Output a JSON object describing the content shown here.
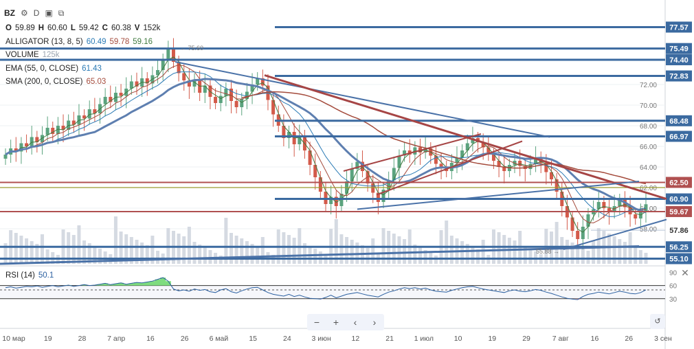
{
  "header": {
    "symbol": "BZ",
    "interval": "D",
    "settings_icon": "gear-icon",
    "compare_icon": "compare-icon",
    "fullscreen_icon": "screens-icon"
  },
  "ohlcv": {
    "o_label": "O",
    "o_val": "59.89",
    "h_label": "H",
    "h_val": "60.60",
    "l_label": "L",
    "l_val": "59.42",
    "c_label": "C",
    "c_val": "60.38",
    "v_label": "V",
    "v_val": "152k"
  },
  "indicators": [
    {
      "name": "ALLIGATOR (13, 8, 5)",
      "values": [
        "60.49",
        "59.78",
        "59.16"
      ],
      "colors": [
        "#2a7ab5",
        "#a44b3c",
        "#3f7a3f"
      ]
    },
    {
      "name": "VOLUME",
      "values": [
        "125k"
      ],
      "colors": [
        "#9aa4b0"
      ]
    },
    {
      "name": "EMA (55, 0, CLOSE)",
      "values": [
        "61.43"
      ],
      "colors": [
        "#2a7ab5"
      ]
    },
    {
      "name": "SMA (200, 0, CLOSE)",
      "values": [
        "65.03"
      ],
      "colors": [
        "#a44b3c"
      ]
    }
  ],
  "rsi": {
    "name": "RSI (14)",
    "value": "50.1"
  },
  "nav": {
    "zoom_out": "−",
    "zoom_in": "+",
    "left": "‹",
    "right": "›",
    "reset": "↺"
  },
  "colors": {
    "up": "#5ba37e",
    "down": "#d35a4a",
    "blue_level": "#3b6aa0",
    "red_level": "#b05050",
    "olive_level": "#9b9b2f",
    "trend_blue": "#4a72a8",
    "trend_red": "#a64545"
  },
  "chart_data": {
    "type": "line",
    "x_ticks": [
      "10 мар",
      "19",
      "28",
      "7 апр",
      "16",
      "26",
      "6 май",
      "15",
      "24",
      "3 июн",
      "12",
      "21",
      "1 июл",
      "10",
      "19",
      "29",
      "7 авг",
      "16",
      "26",
      "3 сен"
    ],
    "y_ticks": [
      58.0,
      60.0,
      62.0,
      64.0,
      66.0,
      68.0,
      70.0,
      72.0
    ],
    "ylim": [
      54.6,
      78.2
    ],
    "price_levels": [
      {
        "value": 77.57,
        "label": "77.57",
        "kind": "blue"
      },
      {
        "value": 75.49,
        "label": "75.49",
        "kind": "blue"
      },
      {
        "value": 74.4,
        "label": "74.40",
        "kind": "blue"
      },
      {
        "value": 72.83,
        "label": "72.83",
        "kind": "blue"
      },
      {
        "value": 68.48,
        "label": "68.48",
        "kind": "blue"
      },
      {
        "value": 66.97,
        "label": "66.97",
        "kind": "blue"
      },
      {
        "value": 62.5,
        "label": "62.50",
        "kind": "red"
      },
      {
        "value": 60.9,
        "label": "60.90",
        "kind": "blue"
      },
      {
        "value": 59.67,
        "label": "59.67",
        "kind": "red"
      },
      {
        "value": 57.86,
        "label": "57.86",
        "kind": "plain"
      },
      {
        "value": 56.25,
        "label": "56.25",
        "kind": "blue"
      },
      {
        "value": 55.1,
        "label": "55.10",
        "kind": "blue"
      }
    ],
    "annotations": [
      {
        "text": "← 75.60",
        "value": 75.6
      },
      {
        "text": "55.88 →",
        "value": 55.88
      }
    ],
    "closes": [
      65.2,
      65.8,
      65.5,
      66.3,
      66.0,
      66.9,
      66.4,
      67.1,
      67.8,
      67.2,
      68.0,
      67.6,
      68.5,
      68.1,
      69.0,
      68.7,
      69.6,
      69.2,
      70.1,
      70.8,
      70.3,
      71.2,
      70.9,
      71.6,
      72.3,
      71.8,
      72.6,
      72.1,
      72.9,
      73.4,
      74.4,
      75.4,
      74.2,
      73.1,
      72.4,
      71.8,
      72.5,
      71.2,
      71.9,
      70.8,
      70.2,
      70.9,
      71.6,
      70.4,
      69.8,
      70.6,
      71.3,
      72.0,
      72.6,
      71.9,
      70.5,
      69.1,
      68.0,
      66.8,
      67.4,
      66.2,
      67.0,
      65.6,
      64.2,
      63.0,
      61.6,
      60.4,
      61.1,
      60.2,
      61.4,
      62.6,
      63.8,
      64.5,
      63.6,
      62.4,
      61.5,
      60.6,
      61.8,
      62.7,
      63.9,
      65.1,
      65.6,
      65.2,
      65.9,
      65.4,
      65.8,
      65.1,
      64.3,
      64.0,
      63.6,
      64.4,
      64.9,
      65.6,
      66.3,
      66.8,
      66.4,
      65.9,
      65.2,
      64.6,
      64.0,
      63.6,
      64.2,
      64.6,
      64.1,
      63.8,
      64.3,
      64.9,
      64.4,
      63.5,
      62.8,
      61.6,
      60.2,
      59.1,
      57.8,
      57.0,
      58.2,
      59.4,
      59.9,
      60.6,
      60.0,
      59.6,
      60.2,
      60.8,
      60.1,
      59.4,
      59.0,
      59.6,
      60.38
    ],
    "rsi": {
      "ylim": [
        0,
        100
      ],
      "ticks": [
        90,
        60,
        30
      ],
      "band": [
        30,
        60
      ],
      "dashed": 50,
      "values": [
        55,
        57,
        54,
        56,
        58,
        57,
        59,
        56,
        58,
        60,
        57,
        59,
        61,
        58,
        60,
        62,
        60,
        61,
        63,
        65,
        62,
        64,
        66,
        63,
        65,
        67,
        66,
        68,
        70,
        74,
        78,
        70,
        52,
        48,
        50,
        47,
        52,
        49,
        51,
        46,
        44,
        50,
        53,
        46,
        43,
        48,
        52,
        55,
        56,
        50,
        44,
        40,
        38,
        36,
        40,
        35,
        38,
        34,
        31,
        30,
        29,
        33,
        38,
        32,
        36,
        40,
        42,
        44,
        41,
        38,
        36,
        34,
        40,
        45,
        48,
        52,
        55,
        53,
        55,
        52,
        54,
        50,
        47,
        46,
        45,
        49,
        52,
        55,
        57,
        58,
        55,
        52,
        50,
        48,
        46,
        44,
        48,
        50,
        47,
        46,
        48,
        51,
        49,
        45,
        42,
        38,
        34,
        31,
        29,
        28,
        35,
        40,
        42,
        45,
        43,
        41,
        44,
        47,
        45,
        42,
        41,
        44,
        50.1
      ]
    },
    "volume_top_value": "125k"
  }
}
